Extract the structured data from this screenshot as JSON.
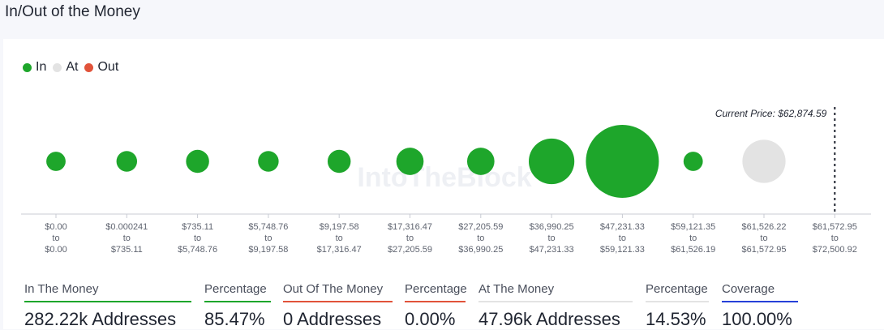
{
  "page": {
    "title": "In/Out of the Money"
  },
  "colors": {
    "in": "#1ea62b",
    "at": "#e3e3e3",
    "out": "#e1533a",
    "coverage": "#2741d8"
  },
  "legend": [
    {
      "label": "In",
      "color": "#1ea62b"
    },
    {
      "label": "At",
      "color": "#e3e3e3"
    },
    {
      "label": "Out",
      "color": "#e1533a"
    }
  ],
  "watermark": "IntoTheBlock",
  "chart_data": {
    "type": "bubble",
    "title": "In/Out of the Money",
    "current_price_label": "Current Price: $62,874.59",
    "buckets": [
      {
        "low": "$0.00",
        "mid": "to",
        "high": "$0.00",
        "status": "in",
        "size": 7
      },
      {
        "low": "$0.000241",
        "mid": "to",
        "high": "$735.11",
        "status": "in",
        "size": 8
      },
      {
        "low": "$735.11",
        "mid": "to",
        "high": "$5,748.76",
        "status": "in",
        "size": 10
      },
      {
        "low": "$5,748.76",
        "mid": "to",
        "high": "$9,197.58",
        "status": "in",
        "size": 8
      },
      {
        "low": "$9,197.58",
        "mid": "to",
        "high": "$17,316.47",
        "status": "in",
        "size": 10
      },
      {
        "low": "$17,316.47",
        "mid": "to",
        "high": "$27,205.59",
        "status": "in",
        "size": 14
      },
      {
        "low": "$27,205.59",
        "mid": "to",
        "high": "$36,990.25",
        "status": "in",
        "size": 14
      },
      {
        "low": "$36,990.25",
        "mid": "to",
        "high": "$47,231.33",
        "status": "in",
        "size": 39
      },
      {
        "low": "$47,231.33",
        "mid": "to",
        "high": "$59,121.33",
        "status": "in",
        "size": 100
      },
      {
        "low": "$59,121.35",
        "mid": "to",
        "high": "$61,526.19",
        "status": "in",
        "size": 7
      },
      {
        "low": "$61,526.22",
        "mid": "to",
        "high": "$61,572.95",
        "status": "at",
        "size": 35
      },
      {
        "low": "$61,572.95",
        "mid": "to",
        "high": "$72,500.92",
        "status": "at",
        "size": 0
      }
    ]
  },
  "stats": [
    {
      "label": "In The Money",
      "value": "282.22k Addresses",
      "color": "#1ea62b"
    },
    {
      "label": "Percentage",
      "value": "85.47%",
      "color": "#1ea62b"
    },
    {
      "label": "Out Of The Money",
      "value": "0 Addresses",
      "color": "#e1533a"
    },
    {
      "label": "Percentage",
      "value": "0.00%",
      "color": "#e1533a"
    },
    {
      "label": "At The Money",
      "value": "47.96k Addresses",
      "color": "#e3e3e3"
    },
    {
      "label": "Percentage",
      "value": "14.53%",
      "color": "#e3e3e3"
    },
    {
      "label": "Coverage",
      "value": "100.00%",
      "color": "#2741d8"
    }
  ]
}
